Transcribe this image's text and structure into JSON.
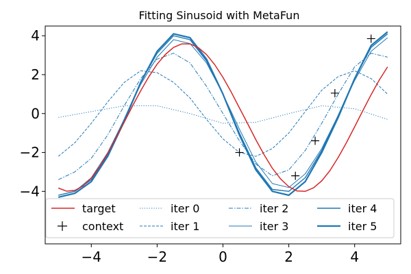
{
  "chart_data": {
    "type": "line",
    "title": "Fitting Sinusoid with MetaFun",
    "xlabel": "",
    "ylabel": "",
    "xlim": [
      -5.4,
      5.4
    ],
    "ylim": [
      -6.7,
      4.5
    ],
    "x_ticks": [
      -4,
      -2,
      0,
      2,
      4
    ],
    "x_tick_labels": [
      "−4",
      "−2",
      "0",
      "2",
      "4"
    ],
    "y_ticks": [
      -4,
      -2,
      0,
      2,
      4
    ],
    "y_tick_labels": [
      "−4",
      "−2",
      "0",
      "2",
      "4"
    ],
    "legend_location": "lower-center",
    "colors": {
      "target": "#d62728",
      "model": "#1f77b4",
      "context": "#000000"
    },
    "series": [
      {
        "name": "target",
        "style": "solid",
        "width": 1.5,
        "color": "#d62728",
        "x": [
          -5,
          -4.75,
          -4.5,
          -4.25,
          -4,
          -3.75,
          -3.5,
          -3.25,
          -3,
          -2.75,
          -2.5,
          -2.25,
          -2,
          -1.75,
          -1.5,
          -1.25,
          -1,
          -0.75,
          -0.5,
          -0.25,
          0,
          0.25,
          0.5,
          0.75,
          1,
          1.25,
          1.5,
          1.75,
          2,
          2.25,
          2.5,
          2.75,
          3,
          3.25,
          3.5,
          3.75,
          4,
          4.25,
          4.5,
          4.75,
          5
        ],
        "y": [
          -3.83,
          -3.99,
          -3.95,
          -3.72,
          -3.31,
          -2.74,
          -2.04,
          -1.26,
          -0.45,
          0.38,
          1.17,
          1.9,
          2.54,
          3.04,
          3.4,
          3.58,
          3.58,
          3.39,
          3.03,
          2.51,
          1.86,
          1.11,
          0.29,
          -0.52,
          -1.35,
          -2.12,
          -2.81,
          -3.36,
          -3.76,
          -3.98,
          -4.0,
          -3.82,
          -3.46,
          -2.93,
          -2.26,
          -1.5,
          -0.68,
          0.15,
          0.97,
          1.73,
          2.4
        ]
      },
      {
        "name": "iter 0",
        "style": "dotted",
        "width": 1.0,
        "color": "#1f77b4",
        "x": [
          -5,
          -4,
          -3,
          -2,
          -1,
          0,
          1,
          2,
          3,
          4,
          5
        ],
        "y": [
          -0.2,
          0.1,
          0.4,
          0.4,
          0.0,
          -0.5,
          -0.45,
          0.0,
          0.4,
          0.25,
          -0.3
        ]
      },
      {
        "name": "iter 1",
        "style": "dashed",
        "width": 1.0,
        "color": "#1f77b4",
        "x": [
          -5,
          -4.5,
          -4,
          -3.5,
          -3,
          -2.5,
          -2,
          -1.5,
          -1,
          -0.5,
          0,
          0.5,
          1,
          1.5,
          2,
          2.5,
          3,
          3.5,
          4,
          4.5,
          5
        ],
        "y": [
          -2.2,
          -1.5,
          -0.5,
          0.6,
          1.6,
          2.2,
          2.1,
          1.6,
          0.8,
          -0.3,
          -1.3,
          -2.0,
          -2.2,
          -1.8,
          -1.0,
          0.1,
          1.2,
          1.9,
          2.2,
          1.8,
          1.0
        ]
      },
      {
        "name": "iter 2",
        "style": "dashdot",
        "width": 1.0,
        "color": "#1f77b4",
        "x": [
          -5,
          -4.5,
          -4,
          -3.5,
          -3,
          -2.5,
          -2,
          -1.5,
          -1,
          -0.5,
          0,
          0.5,
          1,
          1.5,
          2,
          2.5,
          3,
          3.5,
          4,
          4.5,
          5
        ],
        "y": [
          -3.4,
          -3.0,
          -2.3,
          -1.1,
          0.4,
          1.8,
          2.8,
          3.1,
          2.6,
          1.4,
          0.0,
          -1.4,
          -2.6,
          -3.2,
          -2.9,
          -1.9,
          -0.5,
          1.0,
          2.4,
          3.1,
          2.9
        ]
      },
      {
        "name": "iter 3",
        "style": "solid",
        "width": 1.0,
        "color": "#1f77b4",
        "x": [
          -5,
          -4.5,
          -4,
          -3.5,
          -3,
          -2.5,
          -2,
          -1.5,
          -1,
          -0.5,
          0,
          0.5,
          1,
          1.5,
          2,
          2.5,
          3,
          3.5,
          4,
          4.5,
          5
        ],
        "y": [
          -4.2,
          -4.0,
          -3.3,
          -2.0,
          -0.3,
          1.5,
          2.9,
          3.8,
          3.6,
          2.6,
          1.0,
          -0.8,
          -2.5,
          -3.6,
          -3.8,
          -3.1,
          -1.8,
          -0.1,
          1.7,
          3.2,
          3.9
        ]
      },
      {
        "name": "iter 4",
        "style": "solid",
        "width": 1.4,
        "color": "#1f77b4",
        "x": [
          -5,
          -4.5,
          -4,
          -3.5,
          -3,
          -2.5,
          -2,
          -1.5,
          -1,
          -0.5,
          0,
          0.5,
          1,
          1.5,
          2,
          2.5,
          3,
          3.5,
          4,
          4.5,
          5
        ],
        "y": [
          -4.2,
          -4.0,
          -3.4,
          -2.1,
          -0.3,
          1.6,
          3.1,
          4.0,
          3.8,
          2.7,
          1.0,
          -1.0,
          -2.8,
          -3.9,
          -4.0,
          -3.3,
          -1.9,
          -0.1,
          1.8,
          3.4,
          4.1
        ]
      },
      {
        "name": "iter 5",
        "style": "solid",
        "width": 2.2,
        "color": "#1f77b4",
        "x": [
          -5,
          -4.5,
          -4,
          -3.5,
          -3,
          -2.5,
          -2,
          -1.5,
          -1,
          -0.5,
          0,
          0.5,
          1,
          1.5,
          2,
          2.5,
          3,
          3.5,
          4,
          4.5,
          5
        ],
        "y": [
          -4.3,
          -4.1,
          -3.5,
          -2.2,
          -0.4,
          1.6,
          3.2,
          4.1,
          3.9,
          2.8,
          1.0,
          -1.1,
          -2.9,
          -4.0,
          -4.2,
          -3.5,
          -2.0,
          -0.2,
          1.8,
          3.5,
          4.2
        ]
      }
    ],
    "context_points": {
      "name": "context",
      "x": [
        0.5,
        2.2,
        2.8,
        3.4,
        4.5
      ],
      "y": [
        -2.0,
        -3.2,
        -1.4,
        1.05,
        3.85
      ]
    },
    "legend_entries": [
      {
        "label": "target",
        "kind": "line",
        "style": "solid",
        "width": 1.5,
        "color": "#d62728"
      },
      {
        "label": "context",
        "kind": "marker",
        "color": "#000000"
      },
      {
        "label": "iter 0",
        "kind": "line",
        "style": "dotted",
        "width": 1.0,
        "color": "#1f77b4"
      },
      {
        "label": "iter 1",
        "kind": "line",
        "style": "dashed",
        "width": 1.0,
        "color": "#1f77b4"
      },
      {
        "label": "iter 2",
        "kind": "line",
        "style": "dashdot",
        "width": 1.0,
        "color": "#1f77b4"
      },
      {
        "label": "iter 3",
        "kind": "line",
        "style": "solid",
        "width": 1.0,
        "color": "#1f77b4"
      },
      {
        "label": "iter 4",
        "kind": "line",
        "style": "solid",
        "width": 1.4,
        "color": "#1f77b4"
      },
      {
        "label": "iter 5",
        "kind": "line",
        "style": "solid",
        "width": 2.2,
        "color": "#1f77b4"
      }
    ]
  }
}
